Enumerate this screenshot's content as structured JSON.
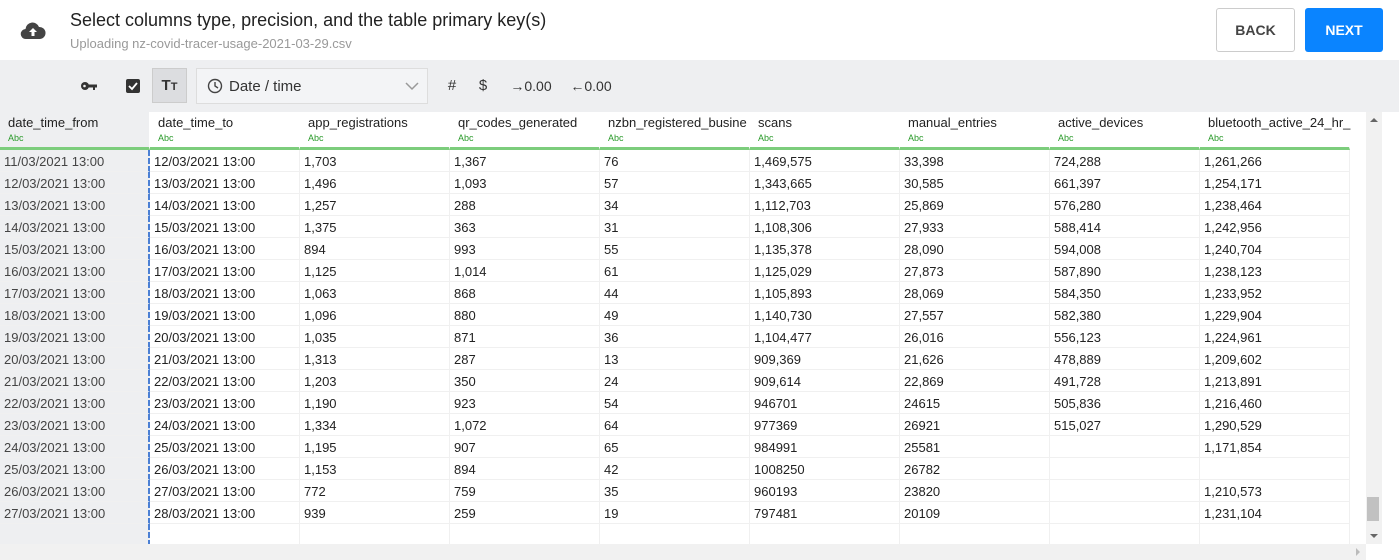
{
  "header": {
    "title": "Select columns type, precision, and the table primary key(s)",
    "subtitle": "Uploading nz-covid-tracer-usage-2021-03-29.csv",
    "back_label": "BACK",
    "next_label": "NEXT",
    "accent": "#0a84ff"
  },
  "toolbar": {
    "type_select": "Date / time",
    "hash": "#",
    "dollar": "$",
    "inc_decimals": "→0.00",
    "dec_decimals": "←0.00"
  },
  "columns": [
    {
      "name": "date_time_from",
      "type": "Abc"
    },
    {
      "name": "date_time_to",
      "type": "Abc"
    },
    {
      "name": "app_registrations",
      "type": "Abc"
    },
    {
      "name": "qr_codes_generated",
      "type": "Abc"
    },
    {
      "name": "nzbn_registered_busine",
      "type": "Abc"
    },
    {
      "name": "scans",
      "type": "Abc"
    },
    {
      "name": "manual_entries",
      "type": "Abc"
    },
    {
      "name": "active_devices",
      "type": "Abc"
    },
    {
      "name": "bluetooth_active_24_hr_",
      "type": "Abc"
    }
  ],
  "rows": [
    [
      "11/03/2021 13:00",
      "12/03/2021 13:00",
      "1,703",
      "1,367",
      "76",
      "1,469,575",
      "33,398",
      "724,288",
      "1,261,266"
    ],
    [
      "12/03/2021 13:00",
      "13/03/2021 13:00",
      "1,496",
      "1,093",
      "57",
      "1,343,665",
      "30,585",
      "661,397",
      "1,254,171"
    ],
    [
      "13/03/2021 13:00",
      "14/03/2021 13:00",
      "1,257",
      "288",
      "34",
      "1,112,703",
      "25,869",
      "576,280",
      "1,238,464"
    ],
    [
      "14/03/2021 13:00",
      "15/03/2021 13:00",
      "1,375",
      "363",
      "31",
      "1,108,306",
      "27,933",
      "588,414",
      "1,242,956"
    ],
    [
      "15/03/2021 13:00",
      "16/03/2021 13:00",
      "894",
      "993",
      "55",
      "1,135,378",
      "28,090",
      "594,008",
      "1,240,704"
    ],
    [
      "16/03/2021 13:00",
      "17/03/2021 13:00",
      "1,125",
      "1,014",
      "61",
      "1,125,029",
      "27,873",
      "587,890",
      "1,238,123"
    ],
    [
      "17/03/2021 13:00",
      "18/03/2021 13:00",
      "1,063",
      "868",
      "44",
      "1,105,893",
      "28,069",
      "584,350",
      "1,233,952"
    ],
    [
      "18/03/2021 13:00",
      "19/03/2021 13:00",
      "1,096",
      "880",
      "49",
      "1,140,730",
      "27,557",
      "582,380",
      "1,229,904"
    ],
    [
      "19/03/2021 13:00",
      "20/03/2021 13:00",
      "1,035",
      "871",
      "36",
      "1,104,477",
      "26,016",
      "556,123",
      "1,224,961"
    ],
    [
      "20/03/2021 13:00",
      "21/03/2021 13:00",
      "1,313",
      "287",
      "13",
      "909,369",
      "21,626",
      "478,889",
      "1,209,602"
    ],
    [
      "21/03/2021 13:00",
      "22/03/2021 13:00",
      "1,203",
      "350",
      "24",
      "909,614",
      "22,869",
      "491,728",
      "1,213,891"
    ],
    [
      "22/03/2021 13:00",
      "23/03/2021 13:00",
      "1,190",
      "923",
      "54",
      "946701",
      "24615",
      "505,836",
      "1,216,460"
    ],
    [
      "23/03/2021 13:00",
      "24/03/2021 13:00",
      "1,334",
      "1,072",
      "64",
      "977369",
      "26921",
      "515,027",
      "1,290,529"
    ],
    [
      "24/03/2021 13:00",
      "25/03/2021 13:00",
      "1,195",
      "907",
      "65",
      "984991",
      "25581",
      "",
      "1,171,854"
    ],
    [
      "25/03/2021 13:00",
      "26/03/2021 13:00",
      "1,153",
      "894",
      "42",
      "1008250",
      "26782",
      "",
      ""
    ],
    [
      "26/03/2021 13:00",
      "27/03/2021 13:00",
      "772",
      "759",
      "35",
      "960193",
      "23820",
      "",
      "1,210,573"
    ],
    [
      "27/03/2021 13:00",
      "28/03/2021 13:00",
      "939",
      "259",
      "19",
      "797481",
      "20109",
      "",
      "1,231,104"
    ],
    [
      "",
      "",
      "",
      "",
      "",
      "",
      "",
      "",
      ""
    ]
  ]
}
